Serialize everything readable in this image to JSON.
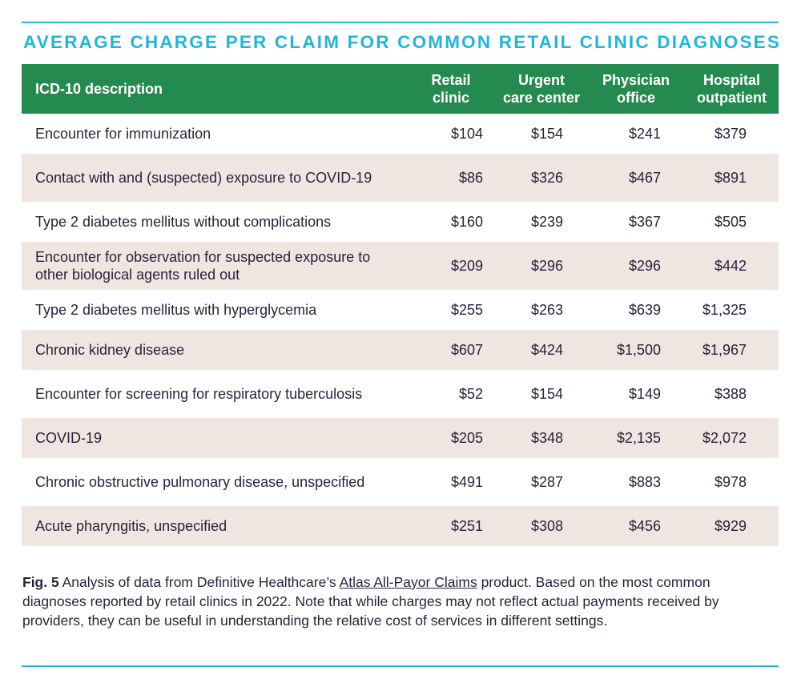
{
  "title": "AVERAGE CHARGE PER CLAIM FOR COMMON RETAIL CLINIC DIAGNOSES",
  "chart_data": {
    "type": "table",
    "columns": [
      "ICD-10 description",
      "Retail clinic",
      "Urgent care center",
      "Physician office",
      "Hospital outpatient"
    ],
    "header": {
      "desc": "ICD-10 description",
      "col1_line1": "Retail",
      "col1_line2": "clinic",
      "col2_line1": "Urgent",
      "col2_line2": "care center",
      "col3_line1": "Physician",
      "col3_line2": "office",
      "col4_line1": "Hospital",
      "col4_line2": "outpatient"
    },
    "rows": [
      {
        "desc": "Encounter for immunization",
        "retail": "$104",
        "urgent": "$154",
        "physician": "$241",
        "hospital": "$379"
      },
      {
        "desc": "Contact with and (suspected) exposure to COVID-19",
        "retail": "$86",
        "urgent": "$326",
        "physician": "$467",
        "hospital": "$891"
      },
      {
        "desc": "Type 2 diabetes mellitus without complications",
        "retail": "$160",
        "urgent": "$239",
        "physician": "$367",
        "hospital": "$505"
      },
      {
        "desc": "Encounter for observation for suspected exposure to other biological agents ruled out",
        "retail": "$209",
        "urgent": "$296",
        "physician": "$296",
        "hospital": "$442"
      },
      {
        "desc": "Type 2 diabetes mellitus with hyperglycemia",
        "retail": "$255",
        "urgent": "$263",
        "physician": "$639",
        "hospital": "$1,325"
      },
      {
        "desc": "Chronic kidney disease",
        "retail": "$607",
        "urgent": "$424",
        "physician": "$1,500",
        "hospital": "$1,967"
      },
      {
        "desc": "Encounter for screening for respiratory tuberculosis",
        "retail": "$52",
        "urgent": "$154",
        "physician": "$149",
        "hospital": "$388"
      },
      {
        "desc": "COVID-19",
        "retail": "$205",
        "urgent": "$348",
        "physician": "$2,135",
        "hospital": "$2,072"
      },
      {
        "desc": "Chronic obstructive pulmonary disease, unspecified",
        "retail": "$491",
        "urgent": "$287",
        "physician": "$883",
        "hospital": "$978"
      },
      {
        "desc": "Acute pharyngitis, unspecified",
        "retail": "$251",
        "urgent": "$308",
        "physician": "$456",
        "hospital": "$929"
      }
    ]
  },
  "caption": {
    "label": "Fig. 5",
    "text_before": " Analysis of data from Definitive Healthcare’s ",
    "link": "Atlas All-Payor Claims",
    "text_after": " product. Based on the most common diagnoses reported by retail clinics in 2022. Note that while charges may not reflect actual payments received by providers, they can be useful in understanding the relative cost of services in different settings."
  },
  "colors": {
    "accent": "#22b5d8",
    "header_bg": "#258a4f",
    "alt_row_bg": "#efe6e2",
    "text": "#2b1f3a"
  }
}
